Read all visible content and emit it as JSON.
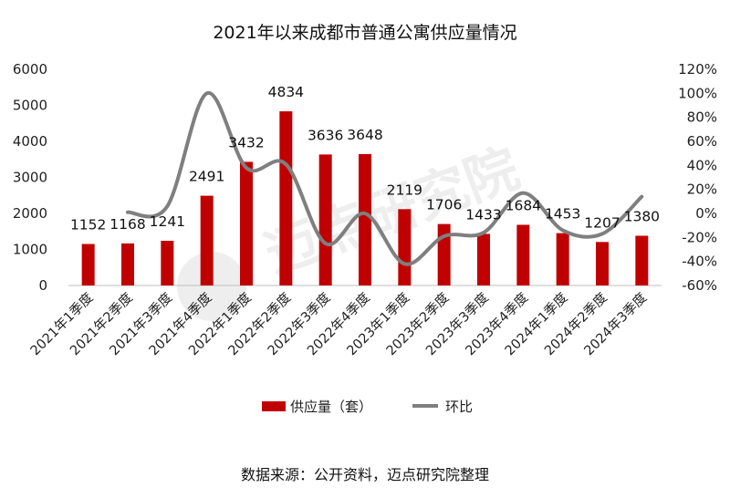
{
  "chart_data": {
    "type": "bar",
    "title": "2021年以来成都市普通公寓供应量情况",
    "categories": [
      "2021年1季度",
      "2021年2季度",
      "2021年3季度",
      "2021年4季度",
      "2022年1季度",
      "2022年2季度",
      "2022年3季度",
      "2022年4季度",
      "2023年1季度",
      "2023年2季度",
      "2023年3季度",
      "2023年4季度",
      "2024年1季度",
      "2024年2季度",
      "2024年3季度"
    ],
    "series": [
      {
        "name": "供应量（套）",
        "type": "bar",
        "axis": "left",
        "color": "#c00000",
        "values": [
          1152,
          1168,
          1241,
          2491,
          3432,
          4834,
          3636,
          3648,
          2119,
          1706,
          1433,
          1684,
          1453,
          1207,
          1380
        ]
      },
      {
        "name": "环比",
        "type": "line",
        "axis": "right",
        "color": "#7f7f7f",
        "values": [
          null,
          0.01,
          0.06,
          1.0,
          0.38,
          0.41,
          -0.25,
          0.0,
          -0.42,
          -0.19,
          -0.16,
          0.17,
          -0.14,
          -0.17,
          0.14
        ]
      }
    ],
    "left_axis": {
      "min": 0,
      "max": 6000,
      "ticks": [
        "0",
        "1000",
        "2000",
        "3000",
        "4000",
        "5000",
        "6000"
      ]
    },
    "right_axis": {
      "min": -0.6,
      "max": 1.2,
      "ticks": [
        "-60%",
        "-40%",
        "-20%",
        "0%",
        "20%",
        "40%",
        "60%",
        "80%",
        "100%",
        "120%"
      ]
    },
    "legend": "bottom",
    "grid": false
  },
  "source_note": "数据来源：公开资料，迈点研究院整理",
  "watermark": "迈点研究院"
}
